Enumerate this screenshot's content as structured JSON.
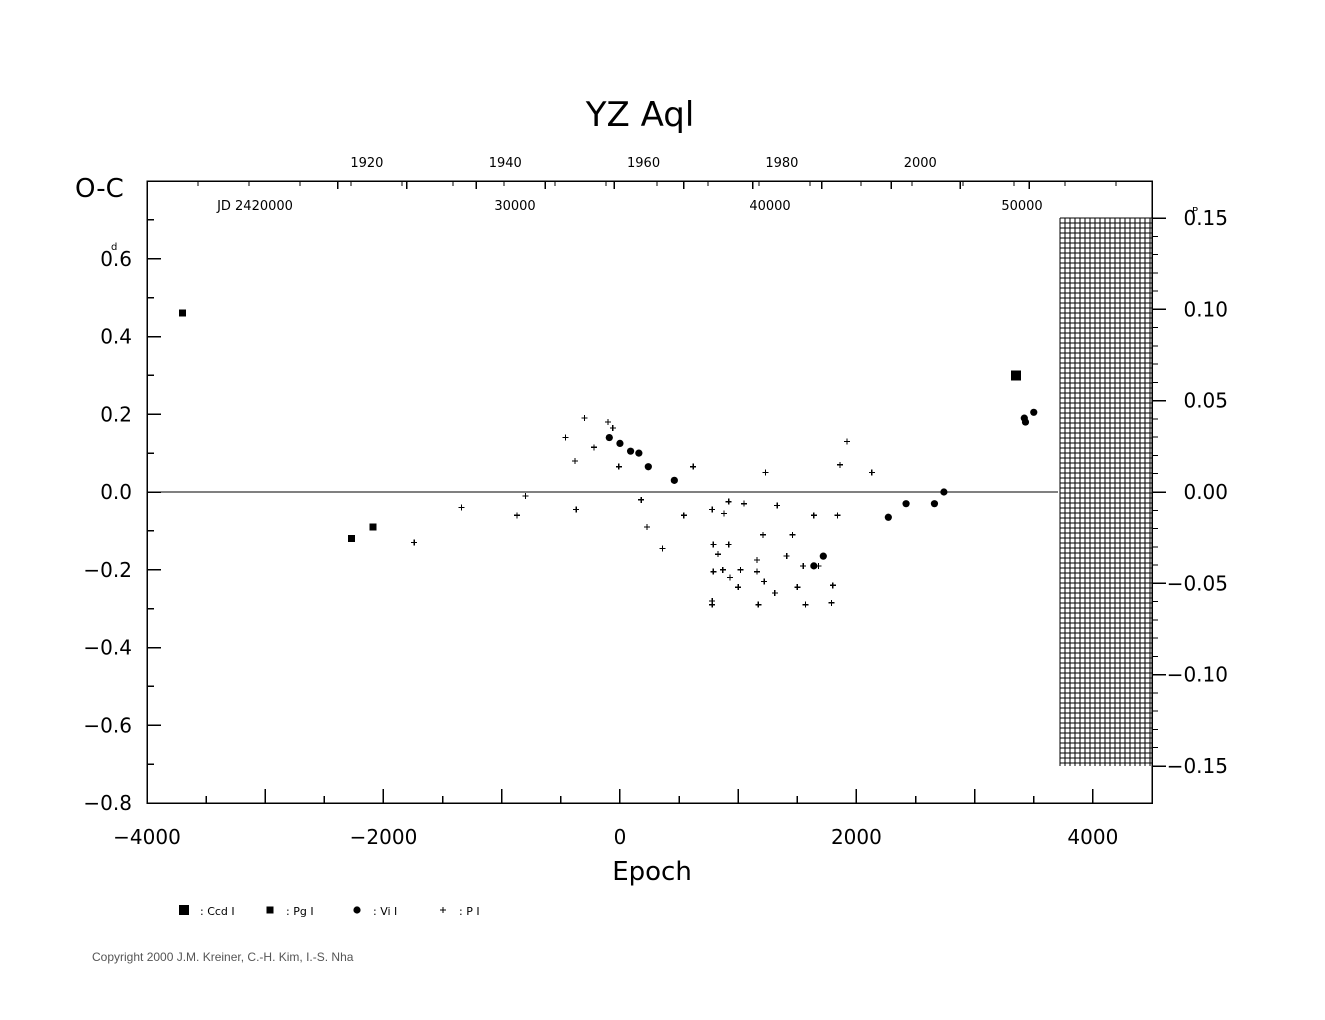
{
  "chart_data": {
    "type": "scatter",
    "title": "YZ Aql",
    "xlabel": "Epoch",
    "ylabel": "O-C",
    "ylabel_unit": "d",
    "right_axis_unit": "P",
    "xlim": [
      -4000,
      4500
    ],
    "ylim": [
      -0.8,
      0.8
    ],
    "right_ylim_phase": [
      -0.15,
      0.15
    ],
    "grid": false,
    "zero_line": true,
    "bottom_ticks": [
      "−4000",
      "−2000",
      "0",
      "2000",
      "4000"
    ],
    "left_ticks": [
      "−0.8",
      "−0.6",
      "−0.4",
      "−0.2",
      "0.0",
      "0.2",
      "0.4",
      "0.6"
    ],
    "left_top_tick": "0.6",
    "right_ticks": [
      "−0.15",
      "−0.10",
      "−0.05",
      "0.00",
      "0.05",
      "0.10",
      "0.15"
    ],
    "top_year_ticks": [
      "1920",
      "1940",
      "1960",
      "1980",
      "2000"
    ],
    "top_jd_ticks": [
      "JD 2420000",
      "30000",
      "40000",
      "50000"
    ],
    "future_region": {
      "x_from": 3700,
      "x_to": 4500,
      "y_from": -0.15,
      "y_to": 0.15,
      "pattern": "crosshatch"
    },
    "series": [
      {
        "name": "Ccd I",
        "marker": "square-large",
        "points": [
          [
            3350,
            0.3
          ]
        ]
      },
      {
        "name": "Pg I",
        "marker": "square-small",
        "points": [
          [
            -3700,
            0.46
          ],
          [
            -2270,
            -0.12
          ],
          [
            -2090,
            -0.09
          ]
        ]
      },
      {
        "name": "Vi I",
        "marker": "circle",
        "points": [
          [
            -90,
            0.14
          ],
          [
            0,
            0.125
          ],
          [
            90,
            0.105
          ],
          [
            160,
            0.1
          ],
          [
            240,
            0.065
          ],
          [
            460,
            0.03
          ],
          [
            1640,
            -0.19
          ],
          [
            1720,
            -0.165
          ],
          [
            2270,
            -0.065
          ],
          [
            2420,
            -0.03
          ],
          [
            2660,
            -0.03
          ],
          [
            2740,
            0
          ],
          [
            3420,
            0.19
          ],
          [
            3430,
            0.18
          ],
          [
            3500,
            0.205
          ]
        ]
      },
      {
        "name": "P I",
        "marker": "plus",
        "points": [
          [
            -1740,
            -0.13
          ],
          [
            -1340,
            -0.04
          ],
          [
            -870,
            -0.06
          ],
          [
            -800,
            -0.01
          ],
          [
            -460,
            0.14
          ],
          [
            -380,
            0.08
          ],
          [
            -370,
            -0.045
          ],
          [
            -300,
            0.19
          ],
          [
            -220,
            0.115
          ],
          [
            -100,
            0.18
          ],
          [
            -60,
            0.165
          ],
          [
            -10,
            0.065
          ],
          [
            180,
            -0.02
          ],
          [
            230,
            -0.09
          ],
          [
            360,
            -0.145
          ],
          [
            540,
            -0.06
          ],
          [
            620,
            0.065
          ],
          [
            780,
            -0.045
          ],
          [
            790,
            -0.135
          ],
          [
            790,
            -0.205
          ],
          [
            780,
            -0.28
          ],
          [
            780,
            -0.29
          ],
          [
            830,
            -0.16
          ],
          [
            870,
            -0.2
          ],
          [
            880,
            -0.055
          ],
          [
            920,
            -0.025
          ],
          [
            920,
            -0.135
          ],
          [
            930,
            -0.22
          ],
          [
            1000,
            -0.245
          ],
          [
            1020,
            -0.2
          ],
          [
            1050,
            -0.03
          ],
          [
            1160,
            -0.175
          ],
          [
            1160,
            -0.205
          ],
          [
            1170,
            -0.29
          ],
          [
            1210,
            -0.11
          ],
          [
            1220,
            -0.23
          ],
          [
            1230,
            0.05
          ],
          [
            1310,
            -0.26
          ],
          [
            1330,
            -0.035
          ],
          [
            1410,
            -0.165
          ],
          [
            1460,
            -0.11
          ],
          [
            1500,
            -0.245
          ],
          [
            1550,
            -0.19
          ],
          [
            1570,
            -0.29
          ],
          [
            1640,
            -0.06
          ],
          [
            1680,
            -0.19
          ],
          [
            1790,
            -0.285
          ],
          [
            1800,
            -0.24
          ],
          [
            1840,
            -0.06
          ],
          [
            1860,
            0.07
          ],
          [
            1920,
            0.13
          ],
          [
            2130,
            0.05
          ]
        ]
      }
    ],
    "legend": [
      {
        "symbol": "square-large",
        "label": ": Ccd I"
      },
      {
        "symbol": "square-small",
        "label": ": Pg I"
      },
      {
        "symbol": "circle",
        "label": ": Vi I"
      },
      {
        "symbol": "plus",
        "label": ": P I"
      }
    ],
    "legend_placement": "below"
  },
  "footer": {
    "copyright": "Copyright 2000 J.M. Kreiner, C.-H. Kim, I.-S. Nha"
  }
}
